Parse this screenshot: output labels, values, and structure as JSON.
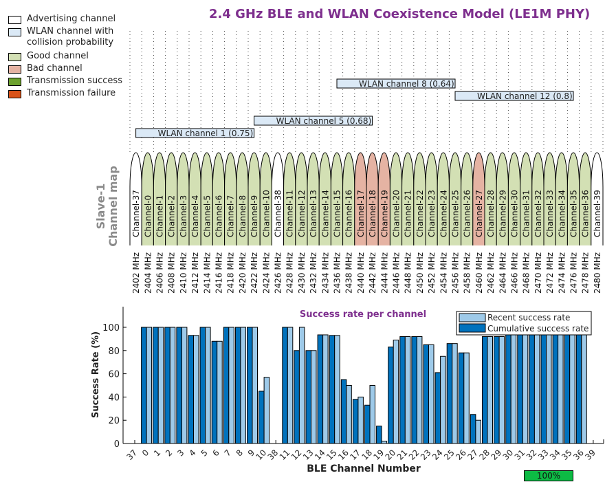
{
  "title": "2.4 GHz BLE and WLAN Coexistence Model (LE1M PHY)",
  "legend": [
    {
      "label": "Advertising channel",
      "color": "#ffffff"
    },
    {
      "label": "WLAN channel with collision probability",
      "color": "#dbe9f6"
    },
    {
      "label": "Good channel",
      "color": "#d3e0b4"
    },
    {
      "label": "Bad channel",
      "color": "#e5b3a3"
    },
    {
      "label": "Transmission success",
      "color": "#6ca12e"
    },
    {
      "label": "Transmission failure",
      "color": "#d95319"
    }
  ],
  "channel_map": {
    "ylabel_line1": "Slave-1",
    "ylabel_line2": "Channel map",
    "channels": [
      {
        "label": "Channel-37",
        "freq": "2402 MHz",
        "status": "advertising"
      },
      {
        "label": "Channel-0",
        "freq": "2404 MHz",
        "status": "good"
      },
      {
        "label": "Channel-1",
        "freq": "2406 MHz",
        "status": "good"
      },
      {
        "label": "Channel-2",
        "freq": "2408 MHz",
        "status": "good"
      },
      {
        "label": "Channel-3",
        "freq": "2410 MHz",
        "status": "good"
      },
      {
        "label": "Channel-4",
        "freq": "2412 MHz",
        "status": "good"
      },
      {
        "label": "Channel-5",
        "freq": "2414 MHz",
        "status": "good"
      },
      {
        "label": "Channel-6",
        "freq": "2416 MHz",
        "status": "good"
      },
      {
        "label": "Channel-7",
        "freq": "2418 MHz",
        "status": "good"
      },
      {
        "label": "Channel-8",
        "freq": "2420 MHz",
        "status": "good"
      },
      {
        "label": "Channel-9",
        "freq": "2422 MHz",
        "status": "good"
      },
      {
        "label": "Channel-10",
        "freq": "2424 MHz",
        "status": "good"
      },
      {
        "label": "Channel-38",
        "freq": "2426 MHz",
        "status": "advertising"
      },
      {
        "label": "Channel-11",
        "freq": "2428 MHz",
        "status": "good"
      },
      {
        "label": "Channel-12",
        "freq": "2430 MHz",
        "status": "good"
      },
      {
        "label": "Channel-13",
        "freq": "2432 MHz",
        "status": "good"
      },
      {
        "label": "Channel-14",
        "freq": "2434 MHz",
        "status": "good"
      },
      {
        "label": "Channel-15",
        "freq": "2436 MHz",
        "status": "good"
      },
      {
        "label": "Channel-16",
        "freq": "2438 MHz",
        "status": "good"
      },
      {
        "label": "Channel-17",
        "freq": "2440 MHz",
        "status": "bad"
      },
      {
        "label": "Channel-18",
        "freq": "2442 MHz",
        "status": "bad"
      },
      {
        "label": "Channel-19",
        "freq": "2444 MHz",
        "status": "bad"
      },
      {
        "label": "Channel-20",
        "freq": "2446 MHz",
        "status": "good"
      },
      {
        "label": "Channel-21",
        "freq": "2448 MHz",
        "status": "good"
      },
      {
        "label": "Channel-22",
        "freq": "2450 MHz",
        "status": "good"
      },
      {
        "label": "Channel-23",
        "freq": "2452 MHz",
        "status": "good"
      },
      {
        "label": "Channel-24",
        "freq": "2454 MHz",
        "status": "good"
      },
      {
        "label": "Channel-25",
        "freq": "2456 MHz",
        "status": "good"
      },
      {
        "label": "Channel-26",
        "freq": "2458 MHz",
        "status": "good"
      },
      {
        "label": "Channel-27",
        "freq": "2460 MHz",
        "status": "bad"
      },
      {
        "label": "Channel-28",
        "freq": "2462 MHz",
        "status": "good"
      },
      {
        "label": "Channel-29",
        "freq": "2464 MHz",
        "status": "good"
      },
      {
        "label": "Channel-30",
        "freq": "2466 MHz",
        "status": "good"
      },
      {
        "label": "Channel-31",
        "freq": "2468 MHz",
        "status": "good"
      },
      {
        "label": "Channel-32",
        "freq": "2470 MHz",
        "status": "good"
      },
      {
        "label": "Channel-33",
        "freq": "2472 MHz",
        "status": "good"
      },
      {
        "label": "Channel-34",
        "freq": "2474 MHz",
        "status": "good"
      },
      {
        "label": "Channel-35",
        "freq": "2476 MHz",
        "status": "good"
      },
      {
        "label": "Channel-36",
        "freq": "2478 MHz",
        "status": "good"
      },
      {
        "label": "Channel-39",
        "freq": "2480 MHz",
        "status": "advertising"
      }
    ],
    "wlan": [
      {
        "label": "WLAN channel 1 (0.75)",
        "start_slot": 0.5,
        "end_slot": 10.5,
        "row": 0
      },
      {
        "label": "WLAN channel 5 (0.68)",
        "start_slot": 10.5,
        "end_slot": 20.5,
        "row": 1
      },
      {
        "label": "WLAN channel 8 (0.64)",
        "start_slot": 17.5,
        "end_slot": 27.5,
        "row": 3
      },
      {
        "label": "WLAN channel 12 (0.8)",
        "start_slot": 27.5,
        "end_slot": 37.5,
        "row": 2
      }
    ]
  },
  "chart_data": {
    "type": "bar",
    "title": "Success rate per channel",
    "xlabel": "BLE Channel Number",
    "ylabel": "Success Rate (%)",
    "ylim": [
      0,
      118
    ],
    "yticks": [
      0,
      20,
      40,
      60,
      80,
      100
    ],
    "legend_position": "top-right",
    "categories": [
      "37",
      "0",
      "1",
      "2",
      "3",
      "4",
      "5",
      "6",
      "7",
      "8",
      "9",
      "10",
      "38",
      "11",
      "12",
      "13",
      "14",
      "15",
      "16",
      "17",
      "18",
      "19",
      "20",
      "21",
      "22",
      "23",
      "24",
      "25",
      "26",
      "27",
      "28",
      "29",
      "30",
      "31",
      "32",
      "33",
      "34",
      "35",
      "36",
      "39"
    ],
    "series": [
      {
        "name": "Cumulative success rate",
        "color": "#0072bd",
        "values": [
          0,
          100,
          100,
          100,
          100,
          93,
          100,
          88,
          100,
          100,
          100,
          45,
          0,
          100,
          80,
          80,
          93.5,
          93,
          55,
          38,
          33,
          15,
          83,
          92,
          92,
          85,
          61,
          86,
          78,
          25,
          92,
          92,
          100,
          100,
          100,
          100,
          100,
          100,
          100,
          0
        ]
      },
      {
        "name": "Recent success rate",
        "color": "#9ecae9",
        "values": [
          0,
          100,
          100,
          100,
          100,
          93,
          100,
          88,
          100,
          100,
          100,
          57,
          0,
          100,
          100,
          80,
          93.5,
          93,
          50,
          40,
          50,
          2,
          89,
          92,
          92,
          85,
          75,
          86,
          78,
          20,
          92,
          92,
          100,
          100,
          100,
          100,
          100,
          100,
          100,
          0
        ]
      }
    ]
  },
  "progress": {
    "label": "100%",
    "value": 100
  }
}
